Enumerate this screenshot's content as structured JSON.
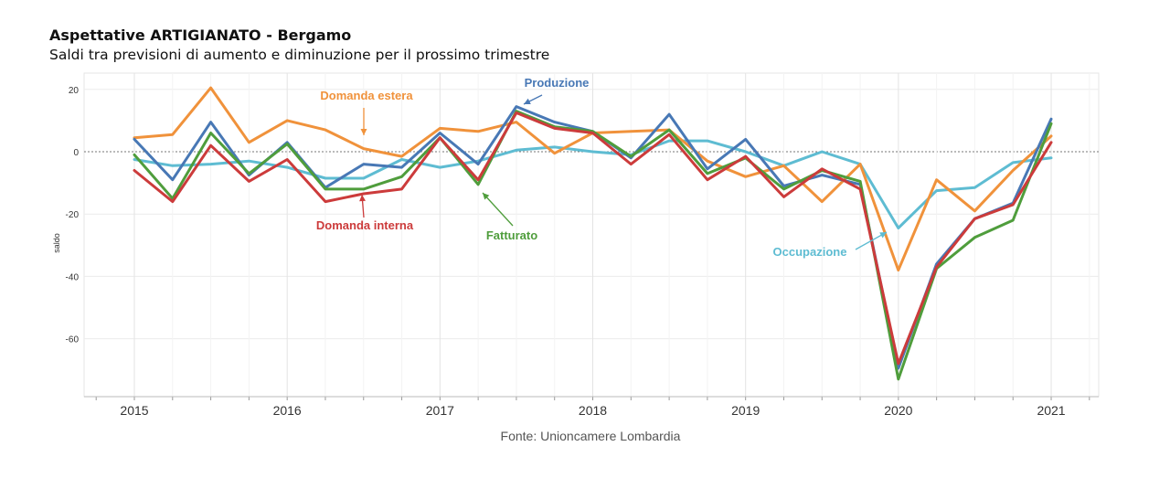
{
  "chart_data": {
    "type": "line",
    "title": "Aspettative ARTIGIANATO - Bergamo",
    "subtitle": "Saldi tra previsioni di aumento e diminuzione per il prossimo trimestre",
    "ylabel": "saldo",
    "xlabel": "",
    "source": "Fonte: Unioncamere Lombardia",
    "ylim": [
      -78,
      22
    ],
    "xlim": [
      2014.75,
      2021.25
    ],
    "yticks": [
      20,
      0,
      -20,
      -40,
      -60
    ],
    "xticks": [
      "2015",
      "2016",
      "2017",
      "2018",
      "2019",
      "2020",
      "2021"
    ],
    "grid": true,
    "zero_line": "dotted",
    "x": [
      2015.0,
      2015.25,
      2015.5,
      2015.75,
      2016.0,
      2016.25,
      2016.5,
      2016.75,
      2017.0,
      2017.25,
      2017.5,
      2017.75,
      2018.0,
      2018.25,
      2018.5,
      2018.75,
      2019.0,
      2019.25,
      2019.5,
      2019.75,
      2020.0,
      2020.25,
      2020.5,
      2020.75,
      2021.0
    ],
    "series": [
      {
        "name": "Domanda estera",
        "color": "#f0923b",
        "values": [
          4.5,
          5.5,
          20.5,
          3,
          10,
          7,
          1,
          -1.5,
          7.5,
          6.5,
          9.5,
          -0.5,
          6,
          6.5,
          7,
          -3,
          -8,
          -4.5,
          -16,
          -4,
          -38,
          -9,
          -19,
          -6,
          5
        ]
      },
      {
        "name": "Produzione",
        "color": "#4878b5",
        "values": [
          4,
          -9,
          9.5,
          -7.5,
          3,
          -11.5,
          -4,
          -5,
          6,
          -4,
          14.5,
          9.5,
          6.5,
          -2,
          12,
          -5.5,
          4,
          -11,
          -7.5,
          -10.5,
          -69.5,
          -36,
          -21.5,
          -16.5,
          10.5
        ]
      },
      {
        "name": "Fatturato",
        "color": "#4f9d3c",
        "values": [
          -1,
          -15,
          6,
          -7,
          2.5,
          -12,
          -12,
          -8,
          4.5,
          -10.5,
          13,
          8,
          6.5,
          -1.5,
          7,
          -7,
          -2,
          -12,
          -6,
          -9.5,
          -73,
          -37.5,
          -27.5,
          -22,
          9
        ]
      },
      {
        "name": "Domanda interna",
        "color": "#cc3b3b",
        "values": [
          -6,
          -16,
          2,
          -9.5,
          -2.5,
          -16,
          -13.5,
          -12,
          4.5,
          -9,
          12.5,
          7.5,
          6,
          -4,
          5.5,
          -9,
          -1.5,
          -14.5,
          -5.5,
          -12,
          -68,
          -37,
          -21.5,
          -17,
          3
        ]
      },
      {
        "name": "Occupazione",
        "color": "#5ebcd2",
        "values": [
          -2.5,
          -4.5,
          -4,
          -3,
          -5,
          -8.5,
          -8.5,
          -2.5,
          -5,
          -3,
          0.5,
          1.5,
          0,
          -1,
          3.5,
          3.5,
          0,
          -4.5,
          0,
          -4,
          -24.5,
          -12.5,
          -11.5,
          -3.5,
          -2
        ]
      }
    ],
    "annotations": [
      {
        "label": "Domanda estera",
        "series": "Domanda estera"
      },
      {
        "label": "Produzione",
        "series": "Produzione"
      },
      {
        "label": "Domanda interna",
        "series": "Domanda interna"
      },
      {
        "label": "Fatturato",
        "series": "Fatturato"
      },
      {
        "label": "Occupazione",
        "series": "Occupazione"
      }
    ]
  }
}
